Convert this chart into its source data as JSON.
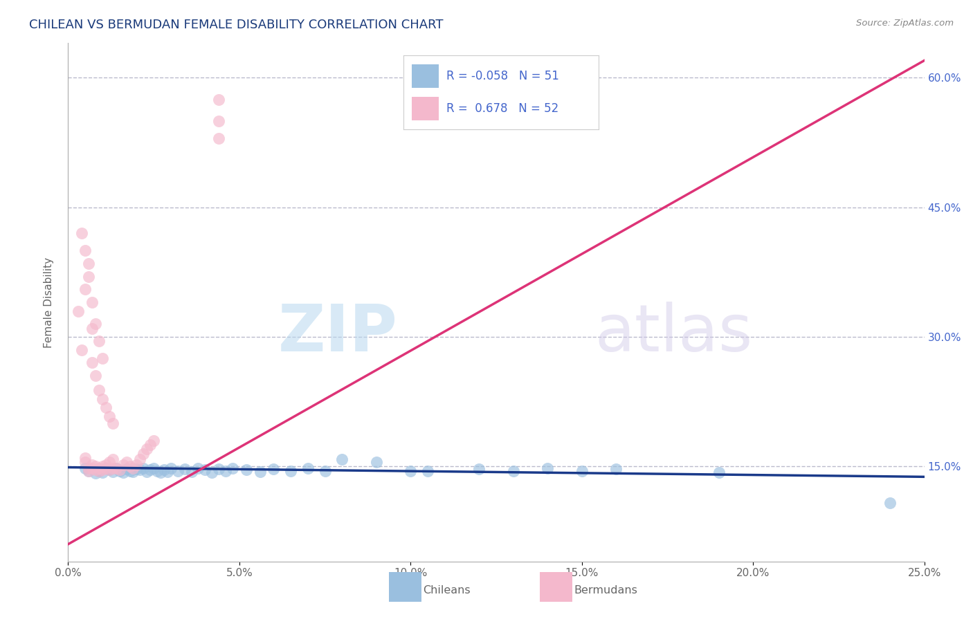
{
  "title": "CHILEAN VS BERMUDAN FEMALE DISABILITY CORRELATION CHART",
  "source": "Source: ZipAtlas.com",
  "ylabel": "Female Disability",
  "xlim": [
    0.0,
    0.25
  ],
  "ylim": [
    0.04,
    0.64
  ],
  "xticks": [
    0.0,
    0.05,
    0.1,
    0.15,
    0.2,
    0.25
  ],
  "yticks": [
    0.15,
    0.3,
    0.45,
    0.6
  ],
  "ytick_labels": [
    "15.0%",
    "30.0%",
    "45.0%",
    "60.0%"
  ],
  "xtick_labels": [
    "0.0%",
    "5.0%",
    "10.0%",
    "15.0%",
    "20.0%",
    "25.0%"
  ],
  "grid_color": "#bbbbcc",
  "background_color": "#ffffff",
  "title_color": "#1a3a7a",
  "title_fontsize": 13,
  "watermark_zip": "ZIP",
  "watermark_atlas": "atlas",
  "legend_R_chilean": "-0.058",
  "legend_N_chilean": "51",
  "legend_R_bermudan": "0.678",
  "legend_N_bermudan": "52",
  "chilean_color": "#9abfdf",
  "bermudan_color": "#f4b8cc",
  "chilean_line_color": "#1a3a8a",
  "bermudan_line_color": "#dd3377",
  "axis_color": "#aaaaaa",
  "tick_color": "#666666",
  "right_tick_color": "#4466cc",
  "chilean_line": [
    [
      0.0,
      0.149
    ],
    [
      0.25,
      0.138
    ]
  ],
  "bermudan_line": [
    [
      0.0,
      0.06
    ],
    [
      0.25,
      0.62
    ]
  ],
  "chilean_points": [
    [
      0.005,
      0.148
    ],
    [
      0.006,
      0.145
    ],
    [
      0.008,
      0.142
    ],
    [
      0.009,
      0.145
    ],
    [
      0.01,
      0.143
    ],
    [
      0.011,
      0.148
    ],
    [
      0.012,
      0.146
    ],
    [
      0.013,
      0.144
    ],
    [
      0.014,
      0.148
    ],
    [
      0.015,
      0.145
    ],
    [
      0.016,
      0.143
    ],
    [
      0.017,
      0.147
    ],
    [
      0.018,
      0.145
    ],
    [
      0.019,
      0.144
    ],
    [
      0.02,
      0.147
    ],
    [
      0.021,
      0.146
    ],
    [
      0.022,
      0.148
    ],
    [
      0.023,
      0.144
    ],
    [
      0.024,
      0.146
    ],
    [
      0.025,
      0.148
    ],
    [
      0.026,
      0.145
    ],
    [
      0.027,
      0.143
    ],
    [
      0.028,
      0.146
    ],
    [
      0.029,
      0.144
    ],
    [
      0.03,
      0.148
    ],
    [
      0.032,
      0.145
    ],
    [
      0.034,
      0.147
    ],
    [
      0.036,
      0.144
    ],
    [
      0.038,
      0.148
    ],
    [
      0.04,
      0.146
    ],
    [
      0.042,
      0.143
    ],
    [
      0.044,
      0.147
    ],
    [
      0.046,
      0.145
    ],
    [
      0.048,
      0.148
    ],
    [
      0.052,
      0.146
    ],
    [
      0.056,
      0.144
    ],
    [
      0.06,
      0.147
    ],
    [
      0.065,
      0.145
    ],
    [
      0.07,
      0.148
    ],
    [
      0.075,
      0.145
    ],
    [
      0.08,
      0.158
    ],
    [
      0.09,
      0.155
    ],
    [
      0.1,
      0.145
    ],
    [
      0.105,
      0.145
    ],
    [
      0.12,
      0.147
    ],
    [
      0.13,
      0.145
    ],
    [
      0.14,
      0.148
    ],
    [
      0.15,
      0.145
    ],
    [
      0.16,
      0.147
    ],
    [
      0.19,
      0.143
    ],
    [
      0.24,
      0.108
    ]
  ],
  "bermudan_points": [
    [
      0.005,
      0.155
    ],
    [
      0.005,
      0.16
    ],
    [
      0.006,
      0.148
    ],
    [
      0.006,
      0.145
    ],
    [
      0.007,
      0.148
    ],
    [
      0.007,
      0.152
    ],
    [
      0.008,
      0.146
    ],
    [
      0.008,
      0.15
    ],
    [
      0.009,
      0.145
    ],
    [
      0.009,
      0.148
    ],
    [
      0.01,
      0.146
    ],
    [
      0.01,
      0.15
    ],
    [
      0.011,
      0.148
    ],
    [
      0.011,
      0.152
    ],
    [
      0.012,
      0.146
    ],
    [
      0.012,
      0.155
    ],
    [
      0.013,
      0.148
    ],
    [
      0.013,
      0.158
    ],
    [
      0.014,
      0.148
    ],
    [
      0.015,
      0.146
    ],
    [
      0.016,
      0.152
    ],
    [
      0.017,
      0.155
    ],
    [
      0.018,
      0.15
    ],
    [
      0.019,
      0.148
    ],
    [
      0.02,
      0.152
    ],
    [
      0.021,
      0.158
    ],
    [
      0.022,
      0.165
    ],
    [
      0.023,
      0.17
    ],
    [
      0.024,
      0.175
    ],
    [
      0.025,
      0.18
    ],
    [
      0.003,
      0.33
    ],
    [
      0.004,
      0.285
    ],
    [
      0.005,
      0.355
    ],
    [
      0.006,
      0.385
    ],
    [
      0.007,
      0.31
    ],
    [
      0.007,
      0.27
    ],
    [
      0.008,
      0.255
    ],
    [
      0.009,
      0.238
    ],
    [
      0.01,
      0.228
    ],
    [
      0.011,
      0.218
    ],
    [
      0.012,
      0.208
    ],
    [
      0.013,
      0.2
    ],
    [
      0.004,
      0.42
    ],
    [
      0.005,
      0.4
    ],
    [
      0.006,
      0.37
    ],
    [
      0.007,
      0.34
    ],
    [
      0.008,
      0.315
    ],
    [
      0.009,
      0.295
    ],
    [
      0.01,
      0.275
    ],
    [
      0.044,
      0.53
    ],
    [
      0.044,
      0.55
    ],
    [
      0.044,
      0.575
    ]
  ]
}
